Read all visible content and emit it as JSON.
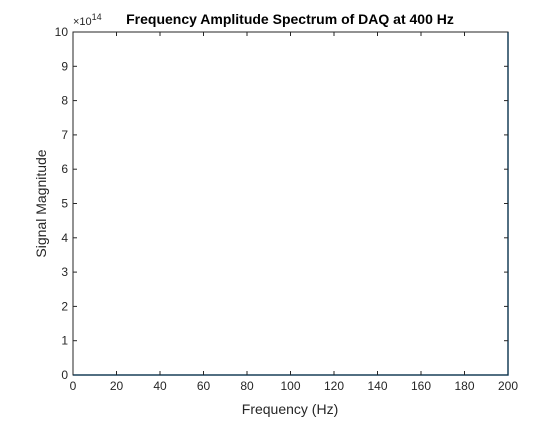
{
  "chart_data": {
    "type": "line",
    "title": "Frequency Amplitude Spectrum of DAQ at 400 Hz",
    "xlabel": "Frequency (Hz)",
    "ylabel": "Signal Magnitude",
    "y_exponent_label": "×10",
    "y_exponent_power": "14",
    "xlim": [
      0,
      200
    ],
    "ylim": [
      0,
      10
    ],
    "x_ticks": [
      0,
      20,
      40,
      60,
      80,
      100,
      120,
      140,
      160,
      180,
      200
    ],
    "y_ticks": [
      0,
      1,
      2,
      3,
      4,
      5,
      6,
      7,
      8,
      9,
      10
    ],
    "grid": false,
    "series": [
      {
        "color": "#0072bd",
        "x": [
          0,
          20,
          40,
          60,
          80,
          100,
          120,
          140,
          160,
          180,
          199.9,
          200,
          200
        ],
        "y": [
          0,
          0,
          0,
          0,
          0,
          0,
          0,
          0,
          0,
          0,
          0,
          0,
          10
        ]
      }
    ]
  }
}
